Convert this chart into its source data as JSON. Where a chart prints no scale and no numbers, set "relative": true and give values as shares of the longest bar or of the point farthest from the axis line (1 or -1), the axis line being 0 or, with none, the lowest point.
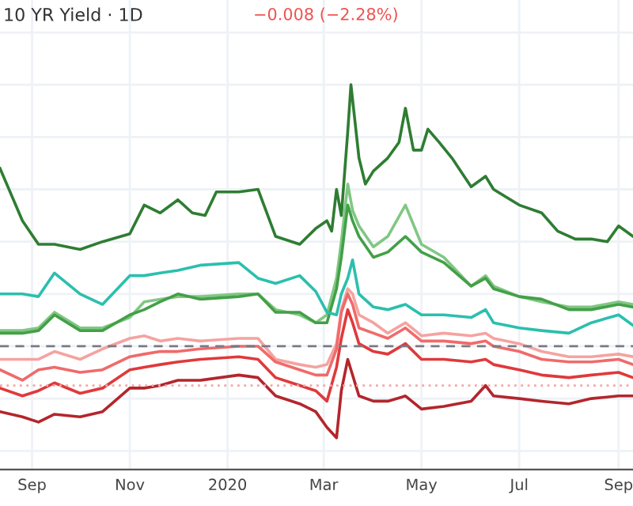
{
  "chart_data": {
    "type": "line",
    "title": "10 YR Yield · 1D",
    "annotations": [
      "−0.008 (−2.28%)"
    ],
    "relative": true,
    "grid": true,
    "xlim": [
      "2019-08-12",
      "2020-09-10"
    ],
    "xticks": [
      {
        "value": "2019-09-01",
        "label": "Sep"
      },
      {
        "value": "2019-11-01",
        "label": "Nov"
      },
      {
        "value": "2020-01-01",
        "label": "2020"
      },
      {
        "value": "2020-03-01",
        "label": "Mar"
      },
      {
        "value": "2020-05-01",
        "label": "May"
      },
      {
        "value": "2020-07-01",
        "label": "Jul"
      },
      {
        "value": "2020-09-01",
        "label": "Sep"
      }
    ],
    "x": [
      "2019-08-12",
      "2019-08-26",
      "2019-09-05",
      "2019-09-15",
      "2019-10-01",
      "2019-10-15",
      "2019-11-01",
      "2019-11-10",
      "2019-11-20",
      "2019-12-01",
      "2019-12-15",
      "2020-01-08",
      "2020-01-20",
      "2020-01-31",
      "2020-02-15",
      "2020-02-25",
      "2020-03-03",
      "2020-03-09",
      "2020-03-12",
      "2020-03-16",
      "2020-03-19",
      "2020-03-23",
      "2020-04-01",
      "2020-04-10",
      "2020-04-21",
      "2020-05-01",
      "2020-05-15",
      "2020-06-01",
      "2020-06-10",
      "2020-06-15",
      "2020-07-01",
      "2020-07-15",
      "2020-08-01",
      "2020-08-15",
      "2020-09-01",
      "2020-09-10"
    ],
    "ref_lines": [
      {
        "axis": "y",
        "value": 0,
        "color": "#787b86",
        "line_style": "dashed"
      },
      {
        "axis": "y",
        "value": -0.15,
        "color": "#f7a5a5",
        "line_style": "dotted"
      }
    ],
    "series": [
      {
        "color": "#2e7d32",
        "x": [
          "2019-08-12",
          "2019-08-26",
          "2019-09-05",
          "2019-09-15",
          "2019-10-01",
          "2019-10-15",
          "2019-11-01",
          "2019-11-10",
          "2019-11-20",
          "2019-12-01",
          "2019-12-10",
          "2019-12-18",
          "2019-12-25",
          "2020-01-08",
          "2020-01-20",
          "2020-01-31",
          "2020-02-15",
          "2020-02-25",
          "2020-03-03",
          "2020-03-06",
          "2020-03-09",
          "2020-03-12",
          "2020-03-16",
          "2020-03-18",
          "2020-03-23",
          "2020-03-27",
          "2020-04-01",
          "2020-04-10",
          "2020-04-17",
          "2020-04-21",
          "2020-04-26",
          "2020-05-01",
          "2020-05-05",
          "2020-05-12",
          "2020-05-20",
          "2020-06-01",
          "2020-06-10",
          "2020-06-15",
          "2020-07-01",
          "2020-07-15",
          "2020-07-25",
          "2020-08-05",
          "2020-08-15",
          "2020-08-25",
          "2020-09-01",
          "2020-09-10"
        ],
        "values": [
          0.68,
          0.48,
          0.39,
          0.39,
          0.37,
          0.4,
          0.43,
          0.54,
          0.51,
          0.56,
          0.51,
          0.5,
          0.59,
          0.59,
          0.6,
          0.42,
          0.39,
          0.45,
          0.48,
          0.44,
          0.6,
          0.5,
          0.82,
          1.0,
          0.72,
          0.62,
          0.67,
          0.72,
          0.78,
          0.91,
          0.75,
          0.75,
          0.83,
          0.78,
          0.72,
          0.61,
          0.65,
          0.6,
          0.54,
          0.51,
          0.44,
          0.41,
          0.41,
          0.4,
          0.46,
          0.42
        ]
      },
      {
        "color": "#81c784",
        "values": [
          0.06,
          0.06,
          0.07,
          0.13,
          0.07,
          0.07,
          0.11,
          0.17,
          0.18,
          0.19,
          0.19,
          0.2,
          0.2,
          0.14,
          0.12,
          0.09,
          0.12,
          0.26,
          0.4,
          0.62,
          0.52,
          0.46,
          0.38,
          0.42,
          0.54,
          0.39,
          0.34,
          0.23,
          0.27,
          0.23,
          0.19,
          0.17,
          0.15,
          0.15,
          0.17,
          0.16
        ]
      },
      {
        "color": "#43a047",
        "values": [
          0.05,
          0.05,
          0.06,
          0.12,
          0.06,
          0.06,
          0.12,
          0.14,
          0.17,
          0.2,
          0.18,
          0.19,
          0.2,
          0.13,
          0.13,
          0.09,
          0.09,
          0.22,
          0.34,
          0.54,
          0.48,
          0.42,
          0.34,
          0.36,
          0.42,
          0.36,
          0.32,
          0.23,
          0.26,
          0.22,
          0.19,
          0.18,
          0.14,
          0.14,
          0.16,
          0.15
        ]
      },
      {
        "color": "#2bbfae",
        "values": [
          0.2,
          0.2,
          0.19,
          0.28,
          0.2,
          0.16,
          0.27,
          0.27,
          0.28,
          0.29,
          0.31,
          0.32,
          0.26,
          0.24,
          0.27,
          0.21,
          0.13,
          0.12,
          0.2,
          0.26,
          0.33,
          0.2,
          0.15,
          0.14,
          0.16,
          0.12,
          0.12,
          0.11,
          0.14,
          0.09,
          0.07,
          0.06,
          0.05,
          0.09,
          0.12,
          0.08
        ]
      },
      {
        "color": "#f5a3a0",
        "values": [
          -0.05,
          -0.05,
          -0.05,
          -0.02,
          -0.05,
          -0.01,
          0.03,
          0.04,
          0.02,
          0.03,
          0.02,
          0.03,
          0.03,
          -0.05,
          -0.07,
          -0.08,
          -0.07,
          0.01,
          0.14,
          0.22,
          0.2,
          0.12,
          0.09,
          0.05,
          0.09,
          0.04,
          0.05,
          0.04,
          0.05,
          0.03,
          0.01,
          -0.02,
          -0.04,
          -0.04,
          -0.03,
          -0.04
        ]
      },
      {
        "color": "#f06a6a",
        "values": [
          -0.09,
          -0.13,
          -0.09,
          -0.08,
          -0.1,
          -0.09,
          -0.04,
          -0.03,
          -0.02,
          -0.02,
          -0.01,
          0.0,
          0.0,
          -0.06,
          -0.09,
          -0.11,
          -0.11,
          -0.01,
          0.13,
          0.2,
          0.16,
          0.07,
          0.05,
          0.03,
          0.07,
          0.02,
          0.02,
          0.01,
          0.02,
          0.0,
          -0.02,
          -0.05,
          -0.06,
          -0.06,
          -0.05,
          -0.07
        ]
      },
      {
        "color": "#e0393b",
        "values": [
          -0.16,
          -0.19,
          -0.17,
          -0.14,
          -0.18,
          -0.16,
          -0.09,
          -0.08,
          -0.07,
          -0.06,
          -0.05,
          -0.04,
          -0.05,
          -0.12,
          -0.15,
          -0.17,
          -0.21,
          -0.08,
          0.03,
          0.14,
          0.09,
          0.01,
          -0.02,
          -0.03,
          0.01,
          -0.05,
          -0.05,
          -0.06,
          -0.05,
          -0.07,
          -0.09,
          -0.11,
          -0.12,
          -0.11,
          -0.1,
          -0.12
        ]
      },
      {
        "color": "#b3262c",
        "values": [
          -0.25,
          -0.27,
          -0.29,
          -0.26,
          -0.27,
          -0.25,
          -0.16,
          -0.16,
          -0.15,
          -0.13,
          -0.13,
          -0.11,
          -0.12,
          -0.19,
          -0.22,
          -0.25,
          -0.31,
          -0.35,
          -0.17,
          -0.05,
          -0.11,
          -0.19,
          -0.21,
          -0.21,
          -0.19,
          -0.24,
          -0.23,
          -0.21,
          -0.15,
          -0.19,
          -0.2,
          -0.21,
          -0.22,
          -0.2,
          -0.19,
          -0.19
        ]
      }
    ]
  }
}
